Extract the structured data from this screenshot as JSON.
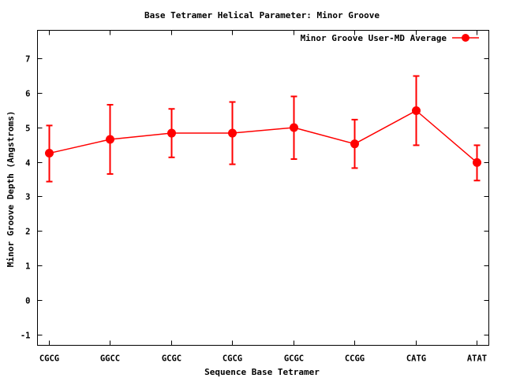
{
  "chart_data": {
    "type": "line",
    "title": "Base Tetramer Helical Parameter: Minor Groove",
    "xlabel": "Sequence Base Tetramer",
    "ylabel": "Minor Groove Depth (Angstroms)",
    "categories": [
      "CGCG",
      "GGCC",
      "GCGC",
      "CGCG",
      "GCGC",
      "CCGG",
      "CATG",
      "ATAT"
    ],
    "ylim": [
      -1.3,
      7.8
    ],
    "yticks": [
      -1,
      0,
      1,
      2,
      3,
      4,
      5,
      6,
      7
    ],
    "grid": false,
    "legend_position": "top-right",
    "series": [
      {
        "name": "Minor Groove User-MD Average",
        "color": "#ff0000",
        "marker": "circle",
        "values": [
          4.25,
          4.65,
          4.83,
          4.83,
          4.99,
          4.52,
          5.48,
          3.98
        ],
        "error_low": [
          3.43,
          3.65,
          4.13,
          3.93,
          4.08,
          3.82,
          4.48,
          3.46
        ],
        "error_high": [
          5.05,
          5.65,
          5.53,
          5.73,
          5.89,
          5.22,
          6.48,
          4.48
        ]
      }
    ]
  }
}
